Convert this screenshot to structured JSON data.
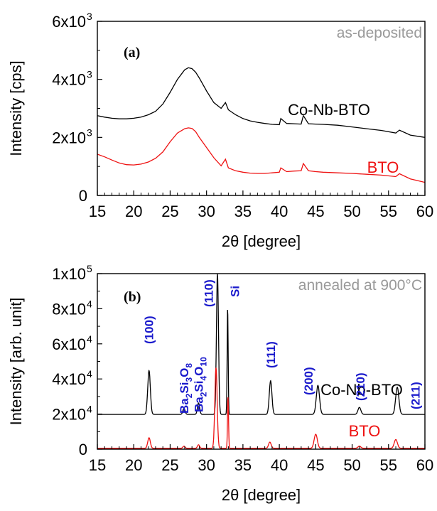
{
  "chart_data": [
    {
      "type": "line",
      "panel_label": "(a)",
      "condition_label": "as-deposited",
      "xlabel": "2θ [degree]",
      "ylabel": "Intensity [cps]",
      "xlim": [
        15,
        60
      ],
      "ylim": [
        0,
        6000
      ],
      "x_ticks": [
        "15",
        "20",
        "25",
        "30",
        "35",
        "40",
        "45",
        "50",
        "55",
        "60"
      ],
      "y_ticks": [
        {
          "mant": "0",
          "exp": ""
        },
        {
          "mant": "2x10",
          "exp": "3"
        },
        {
          "mant": "4x10",
          "exp": "3"
        },
        {
          "mant": "6x10",
          "exp": "3"
        }
      ],
      "grid": false,
      "series": [
        {
          "name": "Co-Nb-BTO",
          "color": "#000000",
          "x": [
            15,
            16,
            17,
            18,
            19,
            20,
            21,
            22,
            23,
            24,
            25,
            26,
            27,
            27.5,
            28,
            28.5,
            29,
            30,
            31,
            32,
            32.6,
            33,
            34,
            35,
            36,
            37,
            38,
            39,
            40,
            40.2,
            41,
            42,
            43,
            43.3,
            44,
            45,
            46,
            48,
            50,
            52,
            54,
            56,
            56.5,
            58,
            60
          ],
          "y": [
            2750,
            2700,
            2660,
            2640,
            2640,
            2660,
            2700,
            2780,
            2900,
            3150,
            3550,
            4000,
            4330,
            4400,
            4370,
            4250,
            4050,
            3600,
            3200,
            3000,
            3200,
            2950,
            2780,
            2650,
            2570,
            2520,
            2480,
            2450,
            2440,
            2650,
            2480,
            2470,
            2460,
            2750,
            2470,
            2460,
            2450,
            2420,
            2360,
            2300,
            2240,
            2150,
            2250,
            2080,
            2000
          ]
        },
        {
          "name": "BTO",
          "color": "#ee1111",
          "x": [
            15,
            16,
            17,
            18,
            19,
            20,
            21,
            22,
            23,
            24,
            25,
            26,
            27,
            27.5,
            28,
            28.5,
            29,
            30,
            31,
            32,
            32.6,
            33,
            34,
            35,
            36,
            37,
            38,
            39,
            40,
            40.2,
            41,
            42,
            43,
            43.3,
            44,
            45,
            46,
            48,
            50,
            52,
            54,
            56,
            56.5,
            58,
            60
          ],
          "y": [
            1420,
            1330,
            1220,
            1120,
            1060,
            1050,
            1080,
            1150,
            1280,
            1500,
            1850,
            2150,
            2300,
            2330,
            2310,
            2200,
            2000,
            1650,
            1300,
            1020,
            1250,
            950,
            850,
            800,
            770,
            760,
            760,
            780,
            800,
            950,
            820,
            840,
            850,
            1100,
            850,
            820,
            800,
            780,
            760,
            730,
            700,
            650,
            750,
            570,
            450
          ]
        }
      ]
    },
    {
      "type": "line",
      "panel_label": "(b)",
      "condition_label": "annealed at 900°C",
      "xlabel": "2θ [degree]",
      "ylabel": "Intensity [arb. unit]",
      "xlim": [
        15,
        60
      ],
      "ylim": [
        0,
        100000
      ],
      "x_ticks": [
        "15",
        "20",
        "25",
        "30",
        "35",
        "40",
        "45",
        "50",
        "55",
        "60"
      ],
      "y_ticks": [
        {
          "mant": "0",
          "exp": ""
        },
        {
          "mant": "2x10",
          "exp": "4"
        },
        {
          "mant": "4x10",
          "exp": "4"
        },
        {
          "mant": "6x10",
          "exp": "4"
        },
        {
          "mant": "8x10",
          "exp": "4"
        },
        {
          "mant": "1x10",
          "exp": "5"
        }
      ],
      "grid": false,
      "series": [
        {
          "name": "Co-Nb-BTO",
          "color": "#000000",
          "baseline": 19800,
          "peaks": [
            [
              22.1,
              25000,
              0.18
            ],
            [
              26.9,
              3500,
              0.15
            ],
            [
              28.9,
              6500,
              0.15
            ],
            [
              31.5,
              80200,
              0.14
            ],
            [
              32.9,
              60500,
              0.07
            ],
            [
              38.8,
              19200,
              0.18
            ],
            [
              45.3,
              16500,
              0.22
            ],
            [
              51.0,
              4000,
              0.2
            ],
            [
              56.2,
              15500,
              0.22
            ]
          ]
        },
        {
          "name": "BTO",
          "color": "#ee1111",
          "baseline": 500,
          "peaks": [
            [
              22.1,
              6000,
              0.18
            ],
            [
              26.9,
              1200,
              0.15
            ],
            [
              28.9,
              2000,
              0.15
            ],
            [
              31.3,
              46000,
              0.16
            ],
            [
              32.95,
              29500,
              0.07
            ],
            [
              38.7,
              3500,
              0.18
            ],
            [
              45.0,
              8000,
              0.22
            ],
            [
              51.0,
              1200,
              0.2
            ],
            [
              56.0,
              5000,
              0.22
            ]
          ]
        }
      ],
      "peak_labels": [
        {
          "text": "(100)",
          "x": 22.1
        },
        {
          "text": "(110)",
          "x": 30.3
        },
        {
          "text": "Si",
          "x": 33.9
        },
        {
          "text": "(111)",
          "x": 38.8
        },
        {
          "text": "(200)",
          "x": 44.0
        },
        {
          "text": "(210)",
          "x": 51.1
        },
        {
          "text": "(211)",
          "x": 58.7
        }
      ],
      "phase_labels": [
        {
          "base": "Ba",
          "sub1": "2",
          "mid": "Si",
          "sub2": "3",
          "end": "O",
          "sub3": "8",
          "x": 26.9
        },
        {
          "base": "Ba",
          "sub1": "2",
          "mid": "Si",
          "sub2": "4",
          "end": "O",
          "sub3": "10",
          "x": 28.9
        }
      ]
    }
  ],
  "colors": {
    "peak_label": "#1a1acc",
    "condition_label": "#999999"
  }
}
